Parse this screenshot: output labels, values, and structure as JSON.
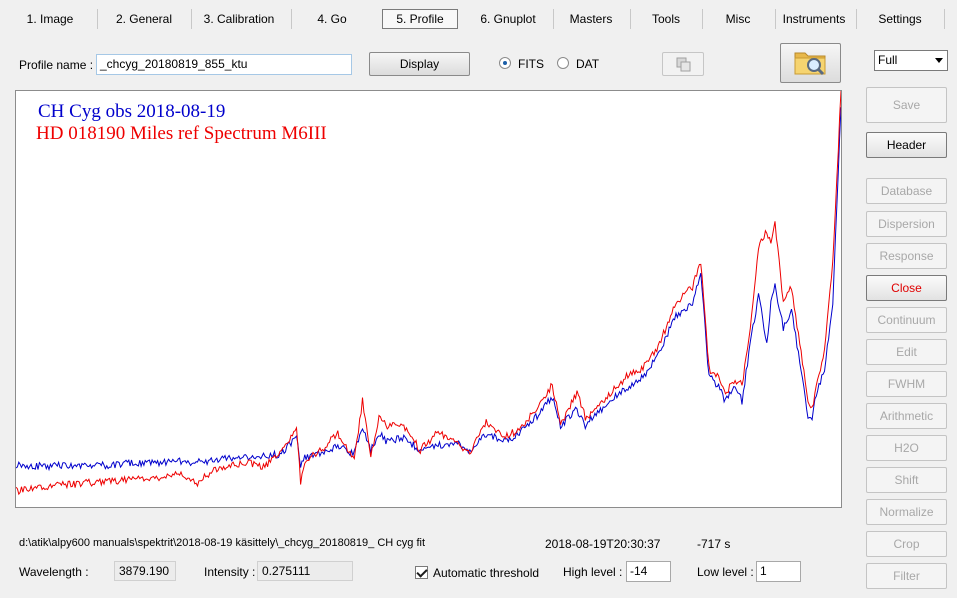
{
  "tabs": [
    {
      "label": "1. Image"
    },
    {
      "label": "2. General"
    },
    {
      "label": "3. Calibration"
    },
    {
      "label": "4. Go"
    },
    {
      "label": "5. Profile"
    },
    {
      "label": "6. Gnuplot"
    },
    {
      "label": "Masters"
    },
    {
      "label": "Tools"
    },
    {
      "label": "Misc"
    },
    {
      "label": "Instruments"
    },
    {
      "label": "Settings"
    }
  ],
  "profile": {
    "name_label": "Profile name :",
    "name_value": "_chcyg_20180819_855_ktu",
    "display_label": "Display",
    "fits_label": "FITS",
    "dat_label": "DAT",
    "format_selected": "FITS"
  },
  "zoom_select": {
    "value": "Full"
  },
  "side_buttons": [
    {
      "label": "Save",
      "enabled": false
    },
    {
      "label": "Header",
      "enabled": true
    },
    {
      "label": "Database",
      "enabled": false
    },
    {
      "label": "Dispersion",
      "enabled": false
    },
    {
      "label": "Response",
      "enabled": false
    },
    {
      "label": "Close",
      "enabled": true
    },
    {
      "label": "Continuum",
      "enabled": false
    },
    {
      "label": "Edit",
      "enabled": false
    },
    {
      "label": "FWHM",
      "enabled": false
    },
    {
      "label": "Arithmetic",
      "enabled": false
    },
    {
      "label": "H2O",
      "enabled": false
    },
    {
      "label": "Shift",
      "enabled": false
    },
    {
      "label": "Normalize",
      "enabled": false
    },
    {
      "label": "Crop",
      "enabled": false
    },
    {
      "label": "Filter",
      "enabled": false
    }
  ],
  "colors": {
    "obs": "#0000cc",
    "ref": "#ee0000",
    "close_text": "#e00000"
  },
  "chart_data": {
    "type": "line",
    "legend": [
      {
        "name": "CH Cyg obs 2018-08-19",
        "color": "#0000cc"
      },
      {
        "name": "HD 018190 Miles ref Spectrum M6III",
        "color": "#ee0000"
      }
    ],
    "x_range": [
      0,
      100
    ],
    "y_range": [
      0,
      1
    ],
    "grid": false,
    "series": [
      {
        "name": "CH Cyg obs 2018-08-19",
        "x": [
          0,
          3,
          6,
          9,
          12,
          15,
          18,
          20,
          22,
          24,
          26,
          28,
          30,
          32,
          34,
          34.5,
          35,
          37,
          39,
          41,
          42,
          43,
          44,
          45,
          47,
          49,
          51,
          53,
          55,
          57,
          59,
          61,
          63,
          65,
          66,
          67,
          68,
          69,
          70,
          72,
          74,
          76,
          78,
          80,
          82,
          83,
          84,
          85,
          86,
          87,
          88,
          89,
          90,
          91,
          91.5,
          92,
          93,
          94,
          95,
          96,
          96.5,
          97,
          98,
          99,
          100
        ],
        "y": [
          0.085,
          0.08,
          0.082,
          0.08,
          0.085,
          0.088,
          0.09,
          0.092,
          0.09,
          0.095,
          0.1,
          0.1,
          0.105,
          0.11,
          0.15,
          0.08,
          0.1,
          0.11,
          0.13,
          0.11,
          0.18,
          0.12,
          0.16,
          0.14,
          0.15,
          0.12,
          0.13,
          0.14,
          0.12,
          0.16,
          0.14,
          0.16,
          0.2,
          0.25,
          0.18,
          0.2,
          0.22,
          0.18,
          0.2,
          0.24,
          0.27,
          0.3,
          0.36,
          0.45,
          0.48,
          0.55,
          0.3,
          0.28,
          0.24,
          0.28,
          0.24,
          0.38,
          0.5,
          0.38,
          0.48,
          0.52,
          0.42,
          0.46,
          0.34,
          0.2,
          0.2,
          0.26,
          0.32,
          0.48,
          0.96
        ]
      },
      {
        "name": "HD 018190 Miles ref Spectrum M6III",
        "x": [
          0,
          3,
          6,
          9,
          12,
          15,
          18,
          20,
          22,
          24,
          26,
          28,
          30,
          32,
          34,
          34.5,
          35,
          37,
          39,
          41,
          42,
          43,
          44,
          45,
          47,
          49,
          51,
          53,
          55,
          57,
          59,
          61,
          63,
          65,
          66,
          67,
          68,
          69,
          70,
          72,
          74,
          76,
          78,
          80,
          82,
          83,
          84,
          85,
          86,
          87,
          88,
          89,
          90,
          91,
          91.5,
          92,
          93,
          94,
          95,
          96,
          96.5,
          97,
          98,
          99,
          100
        ],
        "y": [
          0.02,
          0.03,
          0.035,
          0.04,
          0.045,
          0.05,
          0.055,
          0.06,
          0.04,
          0.07,
          0.08,
          0.09,
          0.08,
          0.11,
          0.17,
          0.04,
          0.09,
          0.12,
          0.16,
          0.1,
          0.24,
          0.1,
          0.2,
          0.18,
          0.18,
          0.12,
          0.16,
          0.15,
          0.11,
          0.19,
          0.15,
          0.17,
          0.22,
          0.28,
          0.18,
          0.22,
          0.26,
          0.2,
          0.21,
          0.26,
          0.3,
          0.32,
          0.38,
          0.48,
          0.52,
          0.58,
          0.32,
          0.3,
          0.26,
          0.29,
          0.28,
          0.42,
          0.62,
          0.66,
          0.62,
          0.68,
          0.48,
          0.52,
          0.38,
          0.24,
          0.22,
          0.28,
          0.36,
          0.58,
          1.0
        ]
      }
    ]
  },
  "status": {
    "path": "d:\\atik\\alpy600 manuals\\spektrit\\2018-08-19 käsittely\\_chcyg_20180819_ CH cyg fit",
    "datetime": "2018-08-19T20:30:37",
    "exposure": "-717 s",
    "wavelength_label": "Wavelength :",
    "wavelength_value": "3879.190",
    "intensity_label": "Intensity :",
    "intensity_value": "0.275111",
    "auto_threshold_label": "Automatic threshold",
    "high_level_label": "High level :",
    "high_level_value": "-14",
    "low_level_label": "Low level :",
    "low_level_value": "1"
  }
}
